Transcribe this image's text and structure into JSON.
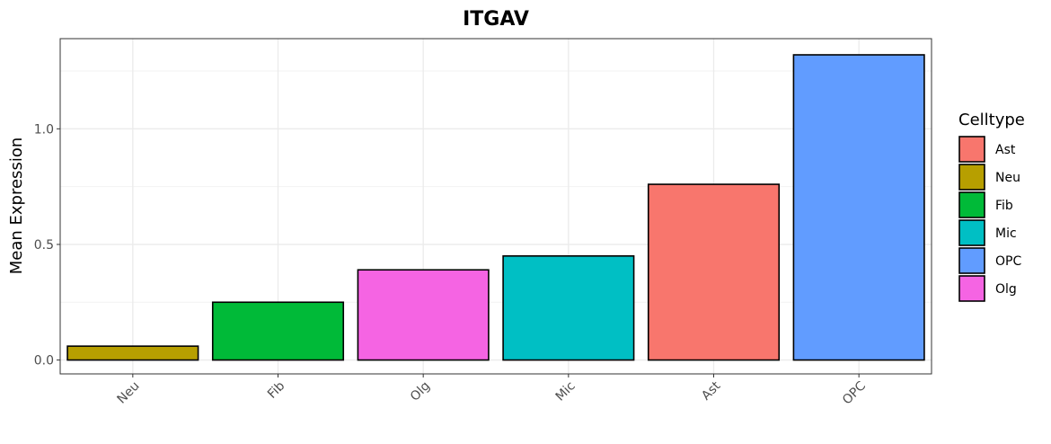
{
  "chart_data": {
    "type": "bar",
    "title": "ITGAV",
    "xlabel": "",
    "ylabel": "Mean Expression",
    "categories": [
      "Neu",
      "Fib",
      "Olg",
      "Mic",
      "Ast",
      "OPC"
    ],
    "values": [
      0.06,
      0.25,
      0.39,
      0.45,
      0.76,
      1.32
    ],
    "ylim": [
      -0.06,
      1.39
    ],
    "yticks": [
      0.0,
      0.5,
      1.0
    ],
    "ytick_labels": [
      "0.0",
      "0.5",
      "1.0"
    ],
    "grid": true,
    "legend": {
      "title": "Celltype",
      "position": "right",
      "entries": [
        "Ast",
        "Neu",
        "Fib",
        "Mic",
        "OPC",
        "Olg"
      ]
    },
    "colors": {
      "Ast": "#F8766D",
      "Neu": "#B79F00",
      "Fib": "#00BA38",
      "Mic": "#00BFC4",
      "OPC": "#619CFF",
      "Olg": "#F564E3"
    }
  }
}
